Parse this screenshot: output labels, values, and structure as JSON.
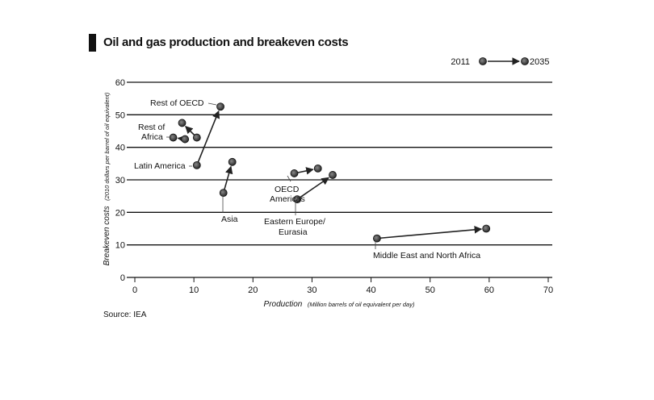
{
  "title": "Oil and gas production and breakeven costs",
  "source": "Source: IEA",
  "legend": {
    "from": "2011",
    "to": "2035",
    "placement": "top-right"
  },
  "chart_data": {
    "type": "scatter",
    "title": "Oil and gas production and breakeven costs",
    "xlabel": "Production",
    "xlabel_unit": "(Million barrels of oil equivalent per day)",
    "ylabel": "Breakeven costs",
    "ylabel_unit": "(2010 dollars per barrel of oil equivalent)",
    "xlim": [
      0,
      70
    ],
    "ylim": [
      0,
      60
    ],
    "x_ticks": [
      0,
      10,
      20,
      30,
      40,
      50,
      60,
      70
    ],
    "y_ticks": [
      0,
      10,
      20,
      30,
      40,
      50,
      60
    ],
    "grid": "horizontal",
    "series": [
      {
        "name": "Rest of OECD",
        "x": [
          10.5,
          14.5
        ],
        "y": [
          34.5,
          52.5
        ]
      },
      {
        "name": "Rest of Africa",
        "x": [
          10.5,
          8
        ],
        "y": [
          43,
          47.5
        ]
      },
      {
        "name": "Latin America",
        "x": [
          8.5,
          6.5
        ],
        "y": [
          42.5,
          43
        ]
      },
      {
        "name": "Asia",
        "x": [
          15,
          16.5
        ],
        "y": [
          26,
          35.5
        ]
      },
      {
        "name": "OECD Americas",
        "x": [
          27,
          31
        ],
        "y": [
          32,
          33.5
        ]
      },
      {
        "name": "Eastern Europe/ Eurasia",
        "x": [
          27.5,
          33.5
        ],
        "y": [
          24,
          31.5
        ]
      },
      {
        "name": "Middle East and North Africa",
        "x": [
          41,
          59.5
        ],
        "y": [
          12,
          15
        ]
      }
    ]
  }
}
